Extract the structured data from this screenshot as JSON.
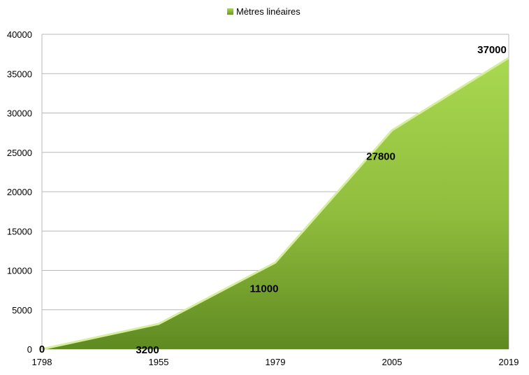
{
  "chart_data": {
    "type": "area",
    "categories": [
      "1798",
      "1955",
      "1979",
      "2005",
      "2019"
    ],
    "series": [
      {
        "name": "Mètres linéaires",
        "values": [
          0,
          3200,
          11000,
          27800,
          37000
        ],
        "data_labels": [
          "0",
          "3200",
          "11000",
          "27800",
          "37000"
        ],
        "color": "#8fbc3c"
      }
    ],
    "ylim": [
      0,
      40000
    ],
    "y_ticks": [
      "0",
      "5000",
      "10000",
      "15000",
      "20000",
      "25000",
      "30000",
      "35000",
      "40000"
    ],
    "grid": true,
    "legend_position": "top",
    "title": "",
    "xlabel": "",
    "ylabel": ""
  }
}
